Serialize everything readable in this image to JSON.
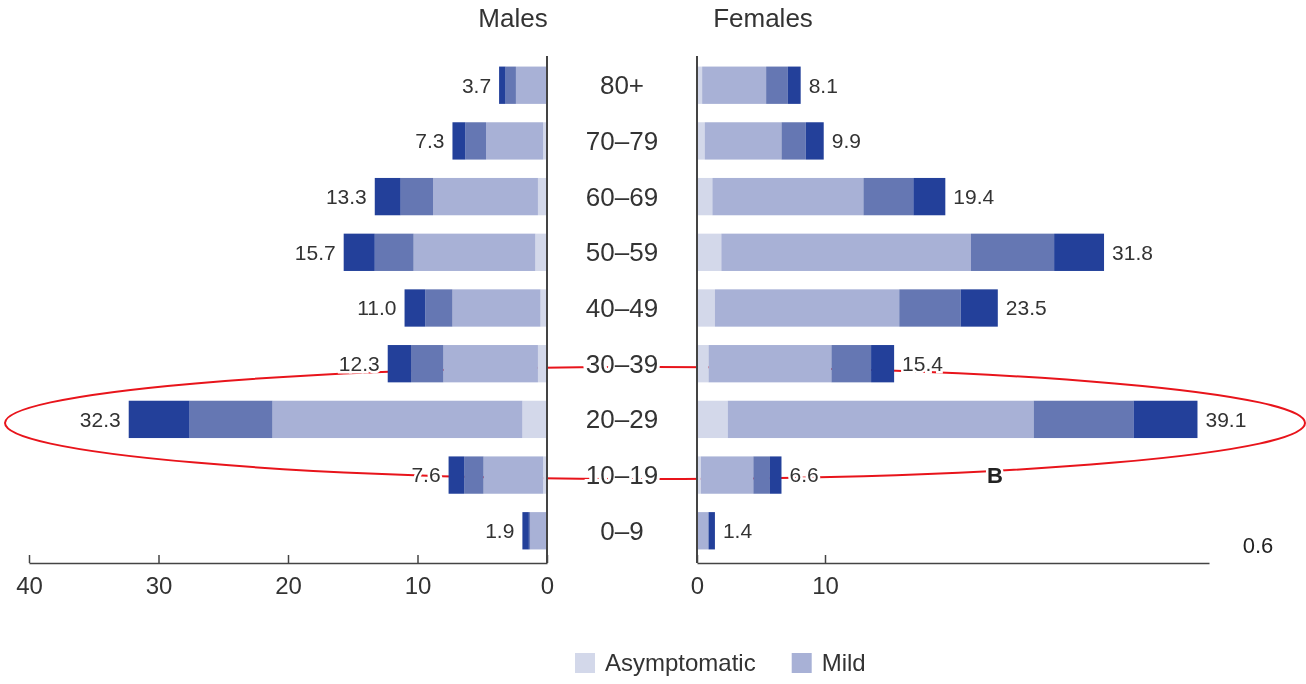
{
  "chart_data": [
    {
      "type": "bar",
      "orientation": "horizontal",
      "stacked": true,
      "title": "Males",
      "categories": [
        "80+",
        "70–79",
        "60–69",
        "50–59",
        "40–49",
        "30–39",
        "20–29",
        "10–19",
        "0–9"
      ],
      "xlim": [
        40,
        0
      ],
      "xticks": [
        40,
        30,
        20,
        10,
        0
      ],
      "grid": false,
      "legend": false,
      "series": [
        {
          "color": "#d3d8ea",
          "values": [
            0,
            0.3,
            0.7,
            0.9,
            0.5,
            0.7,
            1.9,
            0.3,
            0
          ]
        },
        {
          "color": "#a8b1d6",
          "values": [
            2.4,
            4.4,
            8.1,
            9.4,
            6.8,
            7.3,
            19.3,
            4.6,
            1.3
          ]
        },
        {
          "color": "#6577b3",
          "values": [
            0.8,
            1.6,
            2.5,
            3.0,
            2.1,
            2.5,
            6.4,
            1.5,
            0.1
          ]
        },
        {
          "color": "#23409a",
          "values": [
            0.5,
            1.0,
            2.0,
            2.4,
            1.6,
            1.8,
            4.7,
            1.2,
            0.5
          ]
        }
      ],
      "totals": [
        "3.7",
        "7.3",
        "13.3",
        "15.7",
        "11.0",
        "12.3",
        "32.3",
        "7.6",
        "1.9"
      ]
    },
    {
      "type": "bar",
      "orientation": "horizontal",
      "stacked": true,
      "title": "Females",
      "categories": [
        null,
        null,
        null,
        null,
        null,
        null,
        null,
        null,
        null
      ],
      "tick_labels": "x",
      "xlim": [
        0,
        40
      ],
      "xticks": [
        0,
        10
      ],
      "grid": false,
      "legend": "bottom",
      "series": [
        {
          "name": "Asymptomatic",
          "color": "#d3d8ea",
          "values": [
            0.4,
            0.6,
            1.2,
            1.9,
            1.4,
            0.9,
            2.4,
            0.3,
            0
          ]
        },
        {
          "name": "Mild",
          "color": "#a8b1d6",
          "values": [
            5.0,
            6.0,
            11.8,
            19.5,
            14.4,
            9.6,
            23.9,
            4.1,
            0.9
          ]
        },
        {
          "color": "#6577b3",
          "values": [
            1.7,
            1.9,
            3.9,
            6.5,
            4.8,
            3.1,
            7.8,
            1.3,
            0
          ]
        },
        {
          "color": "#23409a",
          "values": [
            1.0,
            1.4,
            2.5,
            3.9,
            2.9,
            1.8,
            5.0,
            0.9,
            0.5
          ]
        }
      ],
      "totals": [
        "8.1",
        "9.9",
        "19.4",
        "31.8",
        "23.5",
        "15.4",
        "39.1",
        "6.6",
        "1.4"
      ],
      "annotations": [
        "B",
        "0.6"
      ]
    }
  ]
}
